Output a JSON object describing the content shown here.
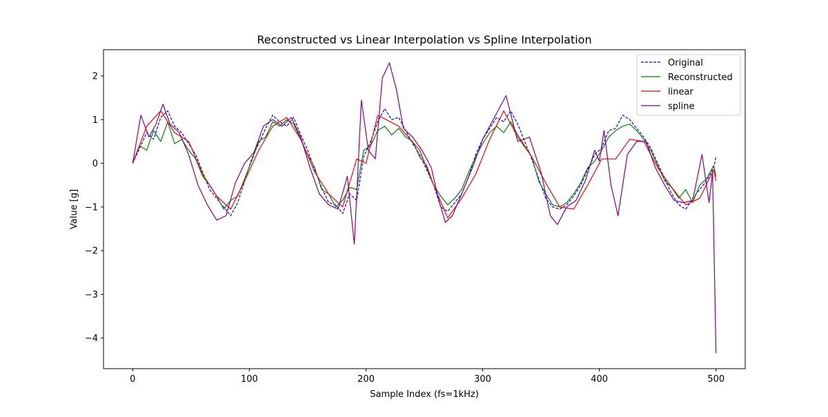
{
  "chart_data": {
    "type": "line",
    "title": "Reconstructed vs Linear Interpolation vs Spline Interpolation",
    "xlabel": "Sample Index (fs=1kHz)",
    "ylabel": "Value [g]",
    "xlim": [
      -25,
      525
    ],
    "ylim": [
      -4.7,
      2.6
    ],
    "xticks": [
      0,
      100,
      200,
      300,
      400,
      500
    ],
    "xtick_labels": [
      "0",
      "100",
      "200",
      "300",
      "400",
      "500"
    ],
    "yticks": [
      -4,
      -3,
      -2,
      -1,
      0,
      1,
      2
    ],
    "ytick_labels": [
      "−4",
      "−3",
      "−2",
      "−1",
      "0",
      "1",
      "2"
    ],
    "grid": false,
    "legend_position": "top-right",
    "series": [
      {
        "name": "Original",
        "color": "#0000ff",
        "style": "dashed",
        "x": [
          0,
          6,
          12,
          18,
          24,
          30,
          36,
          42,
          48,
          54,
          60,
          66,
          72,
          78,
          84,
          90,
          96,
          102,
          108,
          114,
          120,
          126,
          132,
          138,
          144,
          150,
          156,
          162,
          168,
          174,
          180,
          186,
          192,
          198,
          204,
          210,
          216,
          222,
          228,
          234,
          240,
          246,
          252,
          258,
          264,
          270,
          276,
          282,
          288,
          294,
          300,
          306,
          312,
          318,
          324,
          330,
          336,
          342,
          348,
          354,
          360,
          366,
          372,
          378,
          384,
          390,
          396,
          402,
          408,
          414,
          420,
          426,
          432,
          438,
          444,
          450,
          456,
          462,
          468,
          474,
          480,
          486,
          492,
          498,
          500
        ],
        "y": [
          0.0,
          0.35,
          0.7,
          0.55,
          1.05,
          1.2,
          0.85,
          0.7,
          0.45,
          0.2,
          -0.2,
          -0.6,
          -0.8,
          -1.0,
          -1.2,
          -0.9,
          -0.4,
          0.1,
          0.45,
          0.8,
          1.1,
          0.95,
          0.85,
          1.05,
          0.65,
          0.3,
          -0.15,
          -0.55,
          -0.9,
          -0.95,
          -1.15,
          -0.7,
          -0.85,
          0.15,
          0.5,
          0.95,
          1.25,
          1.0,
          1.05,
          0.75,
          0.45,
          0.2,
          -0.15,
          -0.5,
          -1.0,
          -1.1,
          -0.9,
          -0.7,
          -0.3,
          0.2,
          0.55,
          0.8,
          1.05,
          0.95,
          1.2,
          0.9,
          0.5,
          0.1,
          -0.35,
          -0.8,
          -1.0,
          -1.05,
          -0.95,
          -0.75,
          -0.5,
          -0.15,
          0.2,
          0.35,
          0.75,
          0.8,
          1.1,
          1.0,
          0.8,
          0.6,
          0.35,
          0.0,
          -0.35,
          -0.7,
          -0.95,
          -1.05,
          -0.8,
          -0.6,
          -0.4,
          -0.1,
          0.15
        ]
      },
      {
        "name": "Reconstructed",
        "color": "#008000",
        "style": "solid",
        "x": [
          0,
          6,
          12,
          18,
          24,
          30,
          36,
          42,
          48,
          54,
          60,
          66,
          72,
          78,
          84,
          90,
          96,
          102,
          108,
          114,
          120,
          126,
          132,
          138,
          144,
          150,
          156,
          162,
          168,
          174,
          180,
          186,
          192,
          198,
          204,
          210,
          216,
          222,
          228,
          234,
          240,
          246,
          252,
          258,
          264,
          270,
          276,
          282,
          288,
          294,
          300,
          306,
          312,
          318,
          324,
          330,
          336,
          342,
          348,
          354,
          360,
          366,
          372,
          378,
          384,
          390,
          396,
          402,
          408,
          414,
          420,
          426,
          432,
          438,
          444,
          450,
          456,
          462,
          468,
          474,
          480,
          486,
          492,
          498,
          500
        ],
        "y": [
          0.0,
          0.4,
          0.3,
          0.75,
          0.5,
          0.95,
          0.45,
          0.55,
          0.3,
          0.1,
          -0.3,
          -0.5,
          -0.75,
          -1.05,
          -0.85,
          -0.75,
          -0.35,
          0.05,
          0.5,
          0.6,
          0.95,
          0.85,
          1.0,
          0.9,
          0.55,
          0.2,
          -0.1,
          -0.6,
          -0.7,
          -1.0,
          -0.85,
          -0.55,
          -0.6,
          0.3,
          0.4,
          0.75,
          0.85,
          0.65,
          0.8,
          0.6,
          0.5,
          0.15,
          -0.05,
          -0.5,
          -0.75,
          -0.95,
          -0.8,
          -0.6,
          -0.2,
          0.15,
          0.45,
          0.7,
          0.85,
          0.7,
          0.95,
          0.65,
          0.4,
          0.15,
          -0.4,
          -0.7,
          -0.95,
          -1.0,
          -0.9,
          -0.7,
          -0.45,
          -0.1,
          0.05,
          0.3,
          0.6,
          0.75,
          0.85,
          0.9,
          0.75,
          0.55,
          0.3,
          -0.05,
          -0.4,
          -0.55,
          -0.8,
          -0.6,
          -0.9,
          -0.5,
          -0.35,
          -0.05,
          -0.3
        ]
      },
      {
        "name": "linear",
        "color": "#ff0000",
        "style": "solid",
        "x": [
          0,
          12,
          24,
          36,
          48,
          60,
          72,
          84,
          96,
          108,
          120,
          132,
          144,
          156,
          168,
          180,
          192,
          200,
          210,
          228,
          246,
          258,
          270,
          282,
          294,
          306,
          318,
          330,
          342,
          354,
          366,
          378,
          390,
          402,
          414,
          426,
          438,
          450,
          462,
          474,
          486,
          498,
          500
        ],
        "y": [
          0.0,
          0.85,
          1.2,
          0.7,
          0.5,
          -0.25,
          -0.75,
          -1.05,
          -0.4,
          0.3,
          0.85,
          1.05,
          0.55,
          -0.2,
          -0.7,
          -1.0,
          0.1,
          0.0,
          1.1,
          0.85,
          0.3,
          -0.5,
          -1.25,
          -0.8,
          -0.25,
          0.55,
          1.2,
          0.6,
          0.15,
          -0.45,
          -1.0,
          -1.05,
          -0.5,
          0.1,
          0.1,
          0.55,
          0.5,
          -0.1,
          -0.55,
          -0.95,
          -0.8,
          -0.15,
          -0.4
        ]
      },
      {
        "name": "spline",
        "color": "#800080",
        "style": "solid",
        "x": [
          0,
          7,
          14,
          20,
          26,
          32,
          40,
          48,
          56,
          64,
          72,
          80,
          88,
          96,
          104,
          112,
          120,
          128,
          136,
          144,
          152,
          160,
          168,
          176,
          184,
          190,
          196,
          202,
          208,
          214,
          220,
          226,
          232,
          240,
          248,
          256,
          262,
          268,
          274,
          282,
          292,
          300,
          310,
          320,
          330,
          340,
          350,
          358,
          364,
          372,
          380,
          388,
          396,
          400,
          404,
          410,
          416,
          424,
          432,
          440,
          448,
          456,
          464,
          472,
          480,
          488,
          494,
          497,
          500
        ],
        "y": [
          0.0,
          1.1,
          0.6,
          0.9,
          1.35,
          0.9,
          0.7,
          0.2,
          -0.5,
          -0.95,
          -1.3,
          -1.2,
          -0.45,
          0.0,
          0.25,
          0.85,
          1.0,
          0.85,
          1.05,
          0.6,
          -0.1,
          -0.7,
          -0.95,
          -1.05,
          -0.3,
          -1.85,
          1.45,
          0.3,
          0.1,
          1.95,
          2.3,
          1.7,
          0.8,
          0.6,
          0.3,
          -0.1,
          -0.8,
          -1.35,
          -1.2,
          -0.7,
          -0.05,
          0.55,
          1.05,
          1.55,
          0.5,
          0.6,
          -0.2,
          -1.2,
          -1.4,
          -1.0,
          -0.85,
          -0.4,
          0.3,
          0.05,
          0.75,
          -0.5,
          -1.2,
          0.2,
          0.5,
          0.5,
          -0.1,
          -0.5,
          -0.85,
          -0.9,
          -0.85,
          0.2,
          -0.9,
          -0.2,
          -4.35
        ]
      }
    ]
  }
}
